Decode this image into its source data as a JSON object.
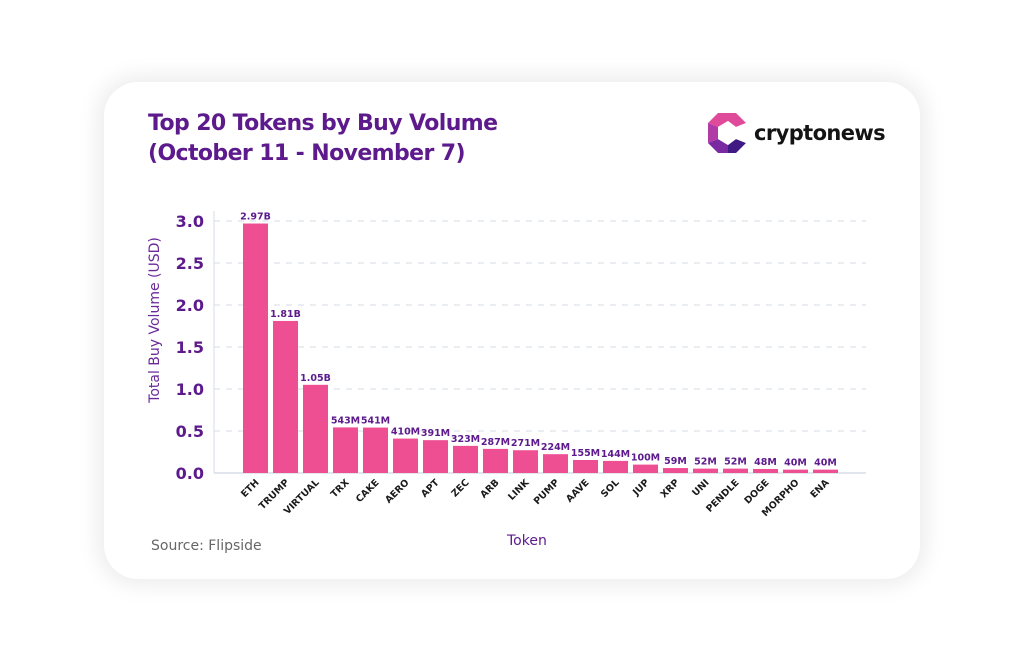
{
  "header": {
    "title_line1": "Top 20 Tokens by Buy Volume",
    "title_line2": "(October 11 - November 7)"
  },
  "logo": {
    "name": "cryptonews",
    "icon": "cryptonews-logo-icon"
  },
  "footer": {
    "source": "Source: Flipside"
  },
  "colors": {
    "bar": "#ee4f93",
    "accent": "#5c1a8c",
    "grid": "#d6dde6"
  },
  "chart_data": {
    "type": "bar",
    "title": "Top 20 Tokens by Buy Volume (October 11 - November 7)",
    "xlabel": "Token",
    "ylabel": "Total Buy Volume (USD)",
    "ylim": [
      0,
      3.0
    ],
    "yticks": [
      0.0,
      0.5,
      1.0,
      1.5,
      2.0,
      2.5,
      3.0
    ],
    "ytick_labels": [
      "0.0",
      "0.5",
      "1.0",
      "1.5",
      "2.0",
      "2.5",
      "3.0"
    ],
    "y_unit": "billions USD",
    "grid": true,
    "categories": [
      "ETH",
      "TRUMP",
      "VIRTUAL",
      "TRX",
      "CAKE",
      "AERO",
      "APT",
      "ZEC",
      "ARB",
      "LINK",
      "PUMP",
      "AAVE",
      "SOL",
      "JUP",
      "XRP",
      "UNI",
      "PENDLE",
      "DOGE",
      "MORPHO",
      "ENA"
    ],
    "values": [
      2.97,
      1.81,
      1.05,
      0.543,
      0.541,
      0.41,
      0.391,
      0.323,
      0.287,
      0.271,
      0.224,
      0.155,
      0.144,
      0.1,
      0.059,
      0.052,
      0.052,
      0.048,
      0.04,
      0.04
    ],
    "data_labels": [
      "2.97B",
      "1.81B",
      "1.05B",
      "543M",
      "541M",
      "410M",
      "391M",
      "323M",
      "287M",
      "271M",
      "224M",
      "155M",
      "144M",
      "100M",
      "59M",
      "52M",
      "52M",
      "48M",
      "40M",
      "40M"
    ]
  }
}
